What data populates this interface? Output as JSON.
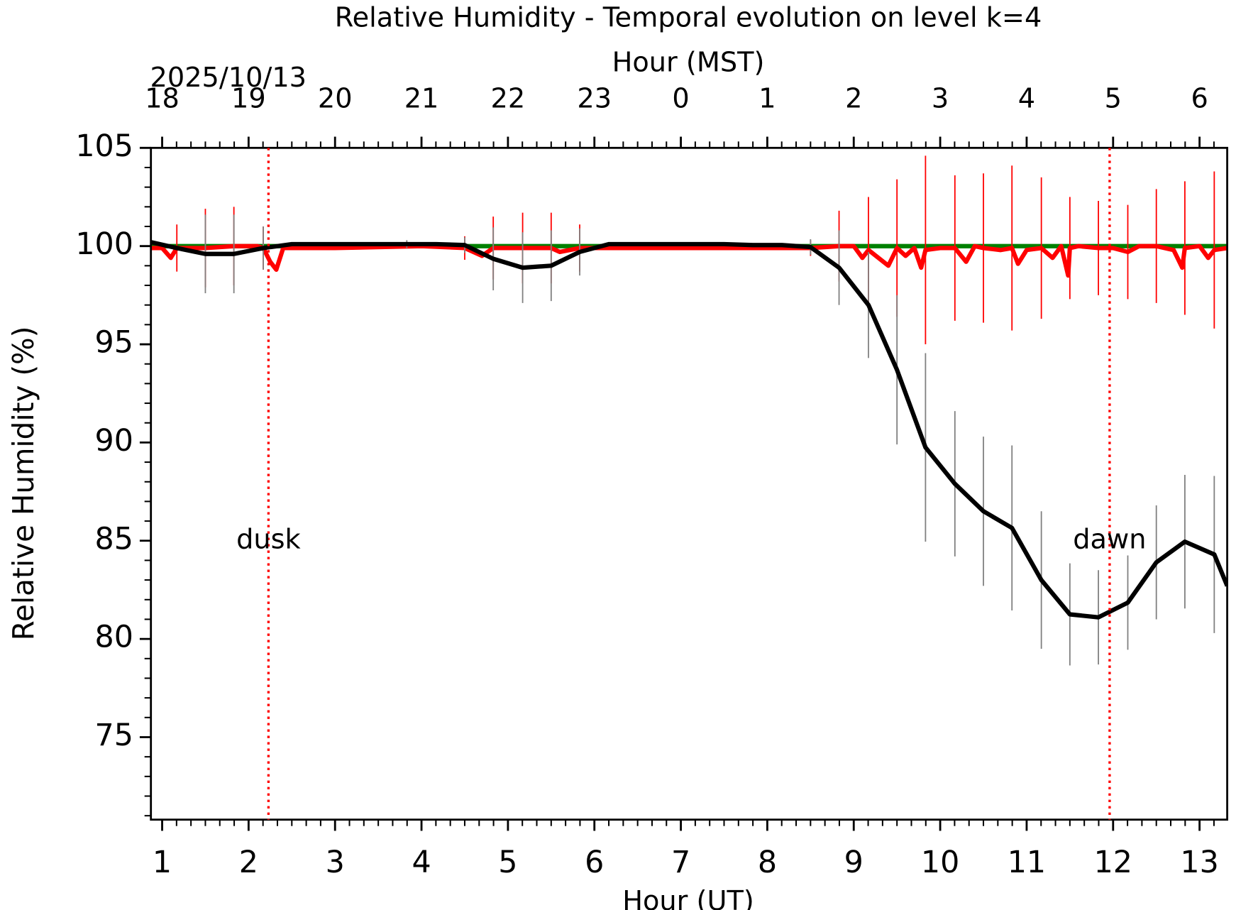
{
  "chart_data": {
    "type": "line",
    "title": "Relative Humidity - Temporal evolution on level k=4",
    "xlabel": "Hour (UT)",
    "ylabel": "Relative Humidity (%)",
    "x2label": "Hour (MST)",
    "date_label": "2025/10/13",
    "xlim": [
      0.87,
      13.32
    ],
    "ylim": [
      70.8,
      105
    ],
    "xticks": [
      1,
      2,
      3,
      4,
      5,
      6,
      7,
      8,
      9,
      10,
      11,
      12,
      13
    ],
    "yticks": [
      75,
      80,
      85,
      90,
      95,
      100,
      105
    ],
    "x2ticks": [
      {
        "value": 1,
        "label": "18"
      },
      {
        "value": 2,
        "label": "19"
      },
      {
        "value": 3,
        "label": "20"
      },
      {
        "value": 4,
        "label": "21"
      },
      {
        "value": 5,
        "label": "22"
      },
      {
        "value": 6,
        "label": "23"
      },
      {
        "value": 7,
        "label": "0"
      },
      {
        "value": 8,
        "label": "1"
      },
      {
        "value": 9,
        "label": "2"
      },
      {
        "value": 10,
        "label": "3"
      },
      {
        "value": 11,
        "label": "4"
      },
      {
        "value": 12,
        "label": "5"
      },
      {
        "value": 13,
        "label": "6"
      }
    ],
    "vlines": [
      {
        "x": 2.23,
        "label": "dusk",
        "label_y": 85,
        "color": "#ff0000"
      },
      {
        "x": 11.96,
        "label": "dawn",
        "label_y": 85,
        "color": "#ff0000"
      }
    ],
    "series": [
      {
        "color": "#008000",
        "error_color": "#008000",
        "x": [
          0.87,
          13.32
        ],
        "values": [
          100,
          100
        ],
        "errors": [
          null,
          null
        ]
      },
      {
        "color": "#ff0000",
        "error_color": "#ff0000",
        "x": [
          0.87,
          1.0,
          1.1,
          1.17,
          1.5,
          1.83,
          2.1,
          2.17,
          2.25,
          2.32,
          2.4,
          3.0,
          4.0,
          4.5,
          4.7,
          4.83,
          5.17,
          5.5,
          5.6,
          5.83,
          6.5,
          7.5,
          8.5,
          8.83,
          9.0,
          9.1,
          9.17,
          9.4,
          9.5,
          9.6,
          9.7,
          9.78,
          9.83,
          10.0,
          10.17,
          10.3,
          10.4,
          10.5,
          10.7,
          10.83,
          10.9,
          11.0,
          11.17,
          11.3,
          11.4,
          11.48,
          11.5,
          11.6,
          11.83,
          12.0,
          12.17,
          12.3,
          12.5,
          12.7,
          12.8,
          12.83,
          13.0,
          13.1,
          13.17,
          13.32
        ],
        "values": [
          99.9,
          99.9,
          99.4,
          99.9,
          99.9,
          100.0,
          100.0,
          99.9,
          99.2,
          98.8,
          99.9,
          99.9,
          100.0,
          99.9,
          99.5,
          99.9,
          99.9,
          99.9,
          99.7,
          99.9,
          99.9,
          99.9,
          99.9,
          100.0,
          100.0,
          99.4,
          99.8,
          99.0,
          99.9,
          99.5,
          99.9,
          98.9,
          99.8,
          99.9,
          99.9,
          99.2,
          100.0,
          99.9,
          99.8,
          99.9,
          99.1,
          99.8,
          99.9,
          99.4,
          100.0,
          98.5,
          99.9,
          100.0,
          99.9,
          99.9,
          99.7,
          100.0,
          100.0,
          99.8,
          98.9,
          99.9,
          100.0,
          99.4,
          99.8,
          99.9
        ],
        "errors": [
          null,
          null,
          null,
          1.2,
          2.0,
          2.0,
          null,
          1.1,
          null,
          null,
          null,
          null,
          null,
          0.6,
          null,
          1.6,
          1.8,
          1.8,
          null,
          1.2,
          null,
          null,
          0.4,
          1.8,
          null,
          null,
          2.7,
          null,
          3.5,
          null,
          null,
          null,
          4.8,
          null,
          3.7,
          null,
          null,
          3.8,
          null,
          4.2,
          null,
          null,
          3.6,
          null,
          null,
          null,
          2.6,
          null,
          2.4,
          null,
          2.4,
          null,
          2.9,
          null,
          null,
          3.4,
          null,
          null,
          4.0,
          null
        ]
      },
      {
        "color": "#000000",
        "error_color": "#808080",
        "x": [
          0.87,
          1.17,
          1.5,
          1.83,
          2.17,
          2.5,
          2.83,
          3.17,
          3.5,
          3.83,
          4.17,
          4.5,
          4.83,
          5.17,
          5.5,
          5.83,
          6.17,
          6.5,
          6.83,
          7.17,
          7.5,
          7.83,
          8.17,
          8.5,
          8.83,
          9.17,
          9.5,
          9.83,
          10.17,
          10.5,
          10.83,
          11.17,
          11.5,
          11.83,
          12.17,
          12.5,
          12.83,
          13.17,
          13.32
        ],
        "values": [
          100.2,
          99.9,
          99.6,
          99.6,
          99.9,
          100.1,
          100.1,
          100.1,
          100.1,
          100.1,
          100.1,
          100.05,
          99.35,
          98.9,
          99.0,
          99.7,
          100.1,
          100.1,
          100.1,
          100.1,
          100.1,
          100.05,
          100.05,
          99.95,
          98.9,
          97.0,
          93.7,
          89.75,
          87.9,
          86.5,
          85.65,
          83.0,
          81.25,
          81.1,
          81.85,
          83.9,
          84.95,
          84.3,
          82.7
        ],
        "errors": [
          null,
          null,
          2.0,
          2.0,
          1.1,
          null,
          null,
          null,
          null,
          0.2,
          null,
          0.4,
          1.6,
          1.8,
          1.8,
          1.2,
          null,
          null,
          null,
          null,
          null,
          null,
          null,
          0.4,
          1.9,
          2.7,
          3.8,
          4.8,
          3.7,
          3.8,
          4.2,
          3.5,
          2.6,
          2.4,
          2.4,
          2.9,
          3.4,
          4.0,
          null
        ]
      }
    ]
  }
}
